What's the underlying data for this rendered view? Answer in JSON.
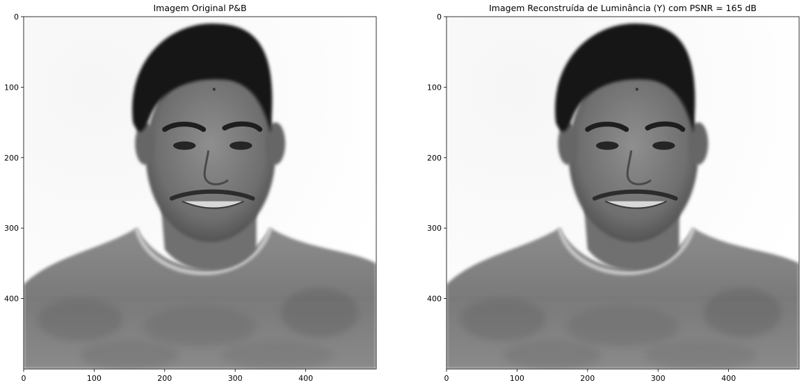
{
  "chart_data": [
    {
      "type": "image",
      "title": "Imagem Original P&B",
      "xlim": [
        0,
        500
      ],
      "ylim": [
        500,
        0
      ],
      "xticks": [
        0,
        100,
        200,
        300,
        400
      ],
      "yticks": [
        0,
        100,
        200,
        300,
        400
      ],
      "colormap": "gray",
      "content": "grayscale portrait"
    },
    {
      "type": "image",
      "title": "Imagem Reconstruída de Luminância (Y) com PSNR = 165 dB",
      "xlim": [
        0,
        500
      ],
      "ylim": [
        500,
        0
      ],
      "xticks": [
        0,
        100,
        200,
        300,
        400
      ],
      "yticks": [
        0,
        100,
        200,
        300,
        400
      ],
      "colormap": "gray",
      "content": "grayscale portrait"
    }
  ]
}
